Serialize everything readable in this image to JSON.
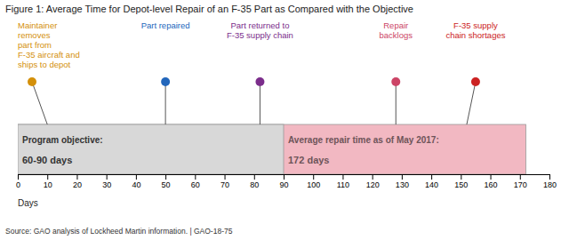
{
  "chart_data": {
    "type": "bar",
    "orientation": "horizontal",
    "stacked": false,
    "title": "Figure 1: Average Time for Depot-level Repair of an F-35 Part as Compared with the Objective",
    "categories": [
      null
    ],
    "series": [
      {
        "name": "Program objective:",
        "color": "#d8d8d8",
        "values": [
          90
        ],
        "value_labels": [
          "60-90 days"
        ]
      },
      {
        "name": "Average repair time as of May 2017:",
        "color": "#f2b8c2",
        "values": [
          172
        ],
        "value_labels": [
          "172 days"
        ]
      }
    ],
    "data_labels": true,
    "tick_labels": "x",
    "xlim": [
      0,
      180
    ],
    "xticks": [
      0,
      10,
      20,
      30,
      40,
      50,
      60,
      70,
      80,
      90,
      100,
      110,
      120,
      130,
      140,
      150,
      160,
      170,
      180
    ],
    "xlabel": "Days",
    "source": "Source: GAO analysis of Lockheed Martin information.  |  GAO-18-75",
    "annotations": [
      {
        "text": "Maintainer\nremoves\npart from\nF-35 aircraft and\nships to depot",
        "x": 10,
        "text_x": 0,
        "color": "#d4900a"
      },
      {
        "text": "Part repaired",
        "x": 50,
        "text_x": 50,
        "color": "#2266bb"
      },
      {
        "text": "Part returned to\nF-35 supply chain",
        "x": 82,
        "text_x": 82,
        "color": "#7b2d8b"
      },
      {
        "text": "Repair\nbacklogs",
        "x": 128,
        "text_x": 128,
        "color": "#cc4466"
      },
      {
        "text": "F-35 supply\nchain shortages",
        "x": 152,
        "text_x": 155,
        "color": "#cc2222"
      }
    ]
  }
}
